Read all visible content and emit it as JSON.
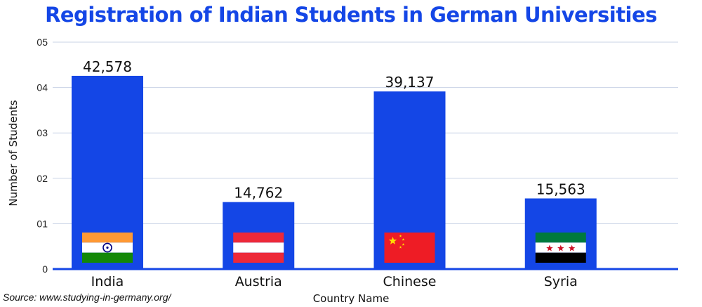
{
  "chart_data": {
    "type": "bar",
    "title": "Registration of Indian Students in German Universities",
    "xlabel": "Country Name",
    "ylabel": "Number of Students",
    "categories": [
      "India",
      "Austria",
      "Chinese",
      "Syria"
    ],
    "values": [
      42578,
      14762,
      39137,
      15563
    ],
    "data_labels": [
      "42,578",
      "14,762",
      "39,137",
      "15,563"
    ],
    "yticks": [
      "0",
      "01",
      "02",
      "03",
      "04",
      "05"
    ],
    "ylim": [
      0,
      50000
    ],
    "grid": true,
    "bar_color": "#1446e6",
    "flags": [
      "india-flag-icon",
      "austria-flag-icon",
      "china-flag-icon",
      "syria-flag-icon"
    ]
  },
  "source": "Source: www.studying-in-germany.org/"
}
